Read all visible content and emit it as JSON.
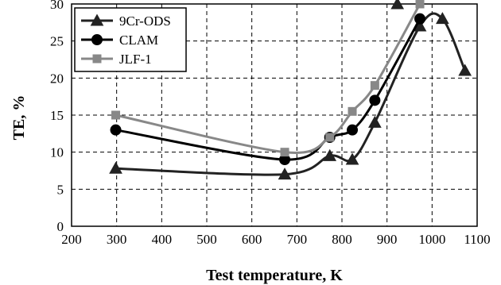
{
  "chart_data": {
    "type": "line",
    "xlabel": "Test temperature, K",
    "ylabel": "TE, %",
    "xlim": [
      200,
      1100
    ],
    "ylim": [
      0,
      30
    ],
    "x_ticks": [
      200,
      300,
      400,
      500,
      600,
      700,
      800,
      900,
      1000,
      1100
    ],
    "y_ticks": [
      0,
      5,
      10,
      15,
      20,
      25,
      30
    ],
    "grid": true,
    "legend_position": "top-left",
    "series": [
      {
        "name": "9Cr-ODS",
        "color": "#222222",
        "marker": "triangle",
        "points": [
          [
            298,
            7.8
          ],
          [
            673,
            7.0
          ],
          [
            773,
            9.5
          ],
          [
            823,
            9.0
          ],
          [
            873,
            14.0
          ],
          [
            973,
            27.0
          ],
          [
            1023,
            28.0
          ],
          [
            1073,
            21.0
          ]
        ],
        "extra_points": [
          [
            923,
            30.0
          ]
        ]
      },
      {
        "name": "CLAM",
        "color": "#000000",
        "marker": "circle",
        "points": [
          [
            298,
            13.0
          ],
          [
            673,
            9.0
          ],
          [
            773,
            12.0
          ],
          [
            823,
            13.0
          ],
          [
            873,
            17.0
          ],
          [
            973,
            28.0
          ]
        ],
        "extra_points": []
      },
      {
        "name": "JLF-1",
        "color": "#888888",
        "marker": "square",
        "points": [
          [
            298,
            15.0
          ],
          [
            673,
            10.0
          ],
          [
            773,
            12.0
          ],
          [
            823,
            15.5
          ],
          [
            873,
            19.0
          ],
          [
            973,
            30.0
          ]
        ],
        "extra_points": []
      }
    ]
  }
}
